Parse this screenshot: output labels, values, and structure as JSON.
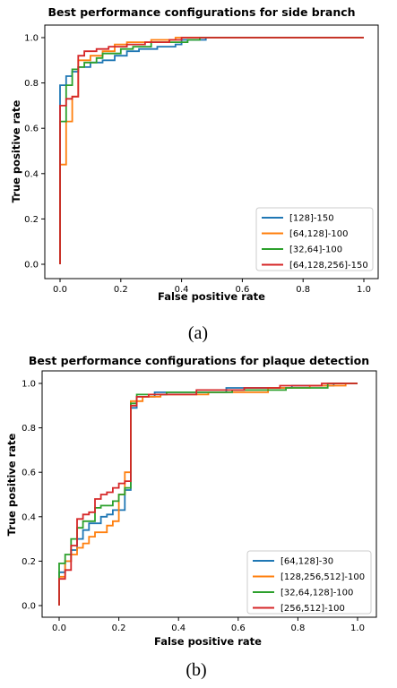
{
  "chart_data": [
    {
      "type": "line",
      "title": "Best performance configurations for side branch",
      "xlabel": "False positive rate",
      "ylabel": "True positive rate",
      "xlim": [
        0,
        1
      ],
      "ylim": [
        0,
        1
      ],
      "x_ticks": [
        "0.0",
        "0.2",
        "0.4",
        "0.6",
        "0.8",
        "1.0"
      ],
      "y_ticks": [
        "0.0",
        "0.2",
        "0.4",
        "0.6",
        "0.8",
        "1.0"
      ],
      "grid": false,
      "legend_position": "lower-right",
      "caption": "(a)",
      "series": [
        {
          "name": "[128]-150",
          "color": "#1f77b4",
          "points": [
            [
              0.0,
              0.0
            ],
            [
              0.0,
              0.79
            ],
            [
              0.02,
              0.79
            ],
            [
              0.02,
              0.83
            ],
            [
              0.04,
              0.83
            ],
            [
              0.04,
              0.85
            ],
            [
              0.06,
              0.85
            ],
            [
              0.06,
              0.87
            ],
            [
              0.1,
              0.87
            ],
            [
              0.1,
              0.89
            ],
            [
              0.14,
              0.89
            ],
            [
              0.14,
              0.9
            ],
            [
              0.18,
              0.9
            ],
            [
              0.18,
              0.92
            ],
            [
              0.22,
              0.92
            ],
            [
              0.22,
              0.94
            ],
            [
              0.26,
              0.94
            ],
            [
              0.26,
              0.95
            ],
            [
              0.32,
              0.95
            ],
            [
              0.32,
              0.96
            ],
            [
              0.38,
              0.96
            ],
            [
              0.38,
              0.97
            ],
            [
              0.4,
              0.97
            ],
            [
              0.4,
              0.99
            ],
            [
              0.48,
              0.99
            ],
            [
              0.48,
              1.0
            ],
            [
              1.0,
              1.0
            ]
          ]
        },
        {
          "name": "[64,128]-100",
          "color": "#ff7f0e",
          "points": [
            [
              0.0,
              0.0
            ],
            [
              0.0,
              0.44
            ],
            [
              0.02,
              0.44
            ],
            [
              0.02,
              0.63
            ],
            [
              0.04,
              0.63
            ],
            [
              0.04,
              0.74
            ],
            [
              0.06,
              0.74
            ],
            [
              0.06,
              0.9
            ],
            [
              0.1,
              0.9
            ],
            [
              0.1,
              0.92
            ],
            [
              0.14,
              0.92
            ],
            [
              0.14,
              0.94
            ],
            [
              0.18,
              0.94
            ],
            [
              0.18,
              0.97
            ],
            [
              0.22,
              0.97
            ],
            [
              0.22,
              0.98
            ],
            [
              0.3,
              0.98
            ],
            [
              0.3,
              0.99
            ],
            [
              0.38,
              0.99
            ],
            [
              0.38,
              1.0
            ],
            [
              1.0,
              1.0
            ]
          ]
        },
        {
          "name": "[32,64]-100",
          "color": "#2ca02c",
          "points": [
            [
              0.0,
              0.0
            ],
            [
              0.0,
              0.63
            ],
            [
              0.02,
              0.63
            ],
            [
              0.02,
              0.79
            ],
            [
              0.04,
              0.79
            ],
            [
              0.04,
              0.86
            ],
            [
              0.06,
              0.86
            ],
            [
              0.06,
              0.87
            ],
            [
              0.08,
              0.87
            ],
            [
              0.08,
              0.89
            ],
            [
              0.12,
              0.89
            ],
            [
              0.12,
              0.91
            ],
            [
              0.14,
              0.91
            ],
            [
              0.14,
              0.93
            ],
            [
              0.2,
              0.93
            ],
            [
              0.2,
              0.95
            ],
            [
              0.24,
              0.95
            ],
            [
              0.24,
              0.96
            ],
            [
              0.3,
              0.96
            ],
            [
              0.3,
              0.98
            ],
            [
              0.42,
              0.98
            ],
            [
              0.42,
              0.99
            ],
            [
              0.46,
              0.99
            ],
            [
              0.46,
              1.0
            ],
            [
              1.0,
              1.0
            ]
          ]
        },
        {
          "name": "[64,128,256]-150",
          "color": "#d62728",
          "points": [
            [
              0.0,
              0.0
            ],
            [
              0.0,
              0.7
            ],
            [
              0.02,
              0.7
            ],
            [
              0.02,
              0.73
            ],
            [
              0.04,
              0.73
            ],
            [
              0.04,
              0.74
            ],
            [
              0.06,
              0.74
            ],
            [
              0.06,
              0.92
            ],
            [
              0.08,
              0.92
            ],
            [
              0.08,
              0.94
            ],
            [
              0.12,
              0.94
            ],
            [
              0.12,
              0.95
            ],
            [
              0.16,
              0.95
            ],
            [
              0.16,
              0.96
            ],
            [
              0.22,
              0.96
            ],
            [
              0.22,
              0.97
            ],
            [
              0.28,
              0.97
            ],
            [
              0.28,
              0.98
            ],
            [
              0.36,
              0.98
            ],
            [
              0.36,
              0.99
            ],
            [
              0.4,
              0.99
            ],
            [
              0.4,
              1.0
            ],
            [
              1.0,
              1.0
            ]
          ]
        }
      ]
    },
    {
      "type": "line",
      "title": "Best performance configurations for plaque detection",
      "xlabel": "False positive rate",
      "ylabel": "True positive rate",
      "xlim": [
        0,
        1
      ],
      "ylim": [
        0,
        1
      ],
      "x_ticks": [
        "0.0",
        "0.2",
        "0.4",
        "0.6",
        "0.8",
        "1.0"
      ],
      "y_ticks": [
        "0.0",
        "0.2",
        "0.4",
        "0.6",
        "0.8",
        "1.0"
      ],
      "grid": false,
      "legend_position": "lower-right",
      "caption": "(b)",
      "series": [
        {
          "name": "[64,128]-30",
          "color": "#1f77b4",
          "points": [
            [
              0.0,
              0.0
            ],
            [
              0.0,
              0.15
            ],
            [
              0.02,
              0.15
            ],
            [
              0.02,
              0.2
            ],
            [
              0.04,
              0.2
            ],
            [
              0.04,
              0.25
            ],
            [
              0.06,
              0.25
            ],
            [
              0.06,
              0.3
            ],
            [
              0.08,
              0.3
            ],
            [
              0.08,
              0.34
            ],
            [
              0.1,
              0.34
            ],
            [
              0.1,
              0.37
            ],
            [
              0.14,
              0.37
            ],
            [
              0.14,
              0.4
            ],
            [
              0.16,
              0.4
            ],
            [
              0.16,
              0.41
            ],
            [
              0.18,
              0.41
            ],
            [
              0.18,
              0.43
            ],
            [
              0.22,
              0.43
            ],
            [
              0.22,
              0.52
            ],
            [
              0.24,
              0.52
            ],
            [
              0.24,
              0.89
            ],
            [
              0.26,
              0.89
            ],
            [
              0.26,
              0.94
            ],
            [
              0.32,
              0.94
            ],
            [
              0.32,
              0.96
            ],
            [
              0.56,
              0.96
            ],
            [
              0.56,
              0.98
            ],
            [
              0.78,
              0.98
            ],
            [
              0.78,
              0.99
            ],
            [
              0.92,
              0.99
            ],
            [
              0.92,
              1.0
            ],
            [
              1.0,
              1.0
            ]
          ]
        },
        {
          "name": "[128,256,512]-100",
          "color": "#ff7f0e",
          "points": [
            [
              0.0,
              0.0
            ],
            [
              0.0,
              0.13
            ],
            [
              0.02,
              0.13
            ],
            [
              0.02,
              0.2
            ],
            [
              0.04,
              0.2
            ],
            [
              0.04,
              0.23
            ],
            [
              0.06,
              0.23
            ],
            [
              0.06,
              0.26
            ],
            [
              0.08,
              0.26
            ],
            [
              0.08,
              0.28
            ],
            [
              0.1,
              0.28
            ],
            [
              0.1,
              0.31
            ],
            [
              0.12,
              0.31
            ],
            [
              0.12,
              0.33
            ],
            [
              0.16,
              0.33
            ],
            [
              0.16,
              0.36
            ],
            [
              0.18,
              0.36
            ],
            [
              0.18,
              0.38
            ],
            [
              0.2,
              0.38
            ],
            [
              0.2,
              0.5
            ],
            [
              0.22,
              0.5
            ],
            [
              0.22,
              0.6
            ],
            [
              0.24,
              0.6
            ],
            [
              0.24,
              0.92
            ],
            [
              0.28,
              0.92
            ],
            [
              0.28,
              0.94
            ],
            [
              0.34,
              0.94
            ],
            [
              0.34,
              0.95
            ],
            [
              0.5,
              0.95
            ],
            [
              0.5,
              0.96
            ],
            [
              0.7,
              0.96
            ],
            [
              0.7,
              0.98
            ],
            [
              0.84,
              0.98
            ],
            [
              0.84,
              0.99
            ],
            [
              0.96,
              0.99
            ],
            [
              0.96,
              1.0
            ],
            [
              1.0,
              1.0
            ]
          ]
        },
        {
          "name": "[32,64,128]-100",
          "color": "#2ca02c",
          "points": [
            [
              0.0,
              0.0
            ],
            [
              0.0,
              0.19
            ],
            [
              0.02,
              0.19
            ],
            [
              0.02,
              0.23
            ],
            [
              0.04,
              0.23
            ],
            [
              0.04,
              0.3
            ],
            [
              0.06,
              0.3
            ],
            [
              0.06,
              0.35
            ],
            [
              0.08,
              0.35
            ],
            [
              0.08,
              0.38
            ],
            [
              0.12,
              0.38
            ],
            [
              0.12,
              0.44
            ],
            [
              0.14,
              0.44
            ],
            [
              0.14,
              0.45
            ],
            [
              0.18,
              0.45
            ],
            [
              0.18,
              0.47
            ],
            [
              0.2,
              0.47
            ],
            [
              0.2,
              0.5
            ],
            [
              0.22,
              0.5
            ],
            [
              0.22,
              0.53
            ],
            [
              0.24,
              0.53
            ],
            [
              0.24,
              0.91
            ],
            [
              0.26,
              0.91
            ],
            [
              0.26,
              0.95
            ],
            [
              0.36,
              0.95
            ],
            [
              0.36,
              0.96
            ],
            [
              0.58,
              0.96
            ],
            [
              0.58,
              0.97
            ],
            [
              0.76,
              0.97
            ],
            [
              0.76,
              0.98
            ],
            [
              0.9,
              0.98
            ],
            [
              0.9,
              1.0
            ],
            [
              1.0,
              1.0
            ]
          ]
        },
        {
          "name": "[256,512]-100",
          "color": "#d62728",
          "points": [
            [
              0.0,
              0.0
            ],
            [
              0.0,
              0.12
            ],
            [
              0.02,
              0.12
            ],
            [
              0.02,
              0.16
            ],
            [
              0.04,
              0.16
            ],
            [
              0.04,
              0.27
            ],
            [
              0.06,
              0.27
            ],
            [
              0.06,
              0.39
            ],
            [
              0.08,
              0.39
            ],
            [
              0.08,
              0.41
            ],
            [
              0.1,
              0.41
            ],
            [
              0.1,
              0.42
            ],
            [
              0.12,
              0.42
            ],
            [
              0.12,
              0.48
            ],
            [
              0.14,
              0.48
            ],
            [
              0.14,
              0.5
            ],
            [
              0.16,
              0.5
            ],
            [
              0.16,
              0.51
            ],
            [
              0.18,
              0.51
            ],
            [
              0.18,
              0.53
            ],
            [
              0.2,
              0.53
            ],
            [
              0.2,
              0.55
            ],
            [
              0.22,
              0.55
            ],
            [
              0.22,
              0.56
            ],
            [
              0.24,
              0.56
            ],
            [
              0.24,
              0.9
            ],
            [
              0.26,
              0.9
            ],
            [
              0.26,
              0.94
            ],
            [
              0.3,
              0.94
            ],
            [
              0.3,
              0.95
            ],
            [
              0.46,
              0.95
            ],
            [
              0.46,
              0.97
            ],
            [
              0.62,
              0.97
            ],
            [
              0.62,
              0.98
            ],
            [
              0.74,
              0.98
            ],
            [
              0.74,
              0.99
            ],
            [
              0.88,
              0.99
            ],
            [
              0.88,
              1.0
            ],
            [
              1.0,
              1.0
            ]
          ]
        }
      ]
    }
  ]
}
